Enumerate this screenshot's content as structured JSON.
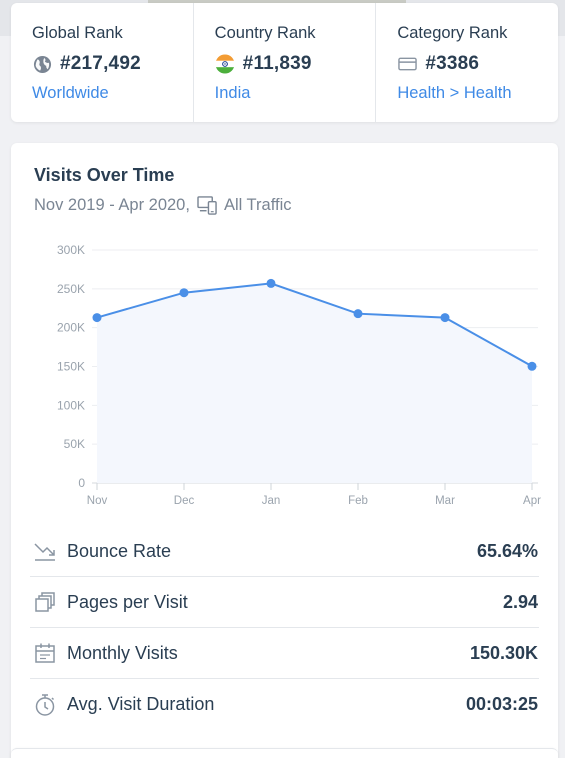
{
  "ranks": [
    {
      "title": "Global Rank",
      "icon": "globe-icon",
      "value": "#217,492",
      "link": "Worldwide"
    },
    {
      "title": "Country Rank",
      "icon": "india-flag-icon",
      "value": "#11,839",
      "link": "India"
    },
    {
      "title": "Category Rank",
      "icon": "category-box-icon",
      "value": "#3386",
      "link": "Health > Health"
    }
  ],
  "visits": {
    "title": "Visits Over Time",
    "date_range": "Nov 2019 - Apr 2020,",
    "traffic": "All Traffic"
  },
  "chart_data": {
    "type": "area",
    "categories": [
      "Nov",
      "Dec",
      "Jan",
      "Feb",
      "Mar",
      "Apr"
    ],
    "values": [
      213000,
      245000,
      257000,
      218000,
      213000,
      150300
    ],
    "ylim": [
      0,
      300000
    ],
    "yticks": [
      0,
      50000,
      100000,
      150000,
      200000,
      250000,
      300000
    ],
    "ytick_labels": [
      "0",
      "50K",
      "100K",
      "150K",
      "200K",
      "250K",
      "300K"
    ],
    "grid": true,
    "colors": {
      "line": "#4a8fe7",
      "fill": "#f4f7fd",
      "grid": "#eceef1",
      "tick": "#9aa3ad"
    }
  },
  "metrics": [
    {
      "label": "Bounce Rate",
      "icon": "bounce-rate-icon",
      "value": "65.64%"
    },
    {
      "label": "Pages per Visit",
      "icon": "pages-icon",
      "value": "2.94"
    },
    {
      "label": "Monthly Visits",
      "icon": "calendar-icon",
      "value": "150.30K"
    },
    {
      "label": "Avg. Visit Duration",
      "icon": "stopwatch-icon",
      "value": "00:03:25"
    }
  ],
  "colors": {
    "accent": "#3f8ae6",
    "text": "#2a3e52",
    "muted": "#7a8593"
  }
}
